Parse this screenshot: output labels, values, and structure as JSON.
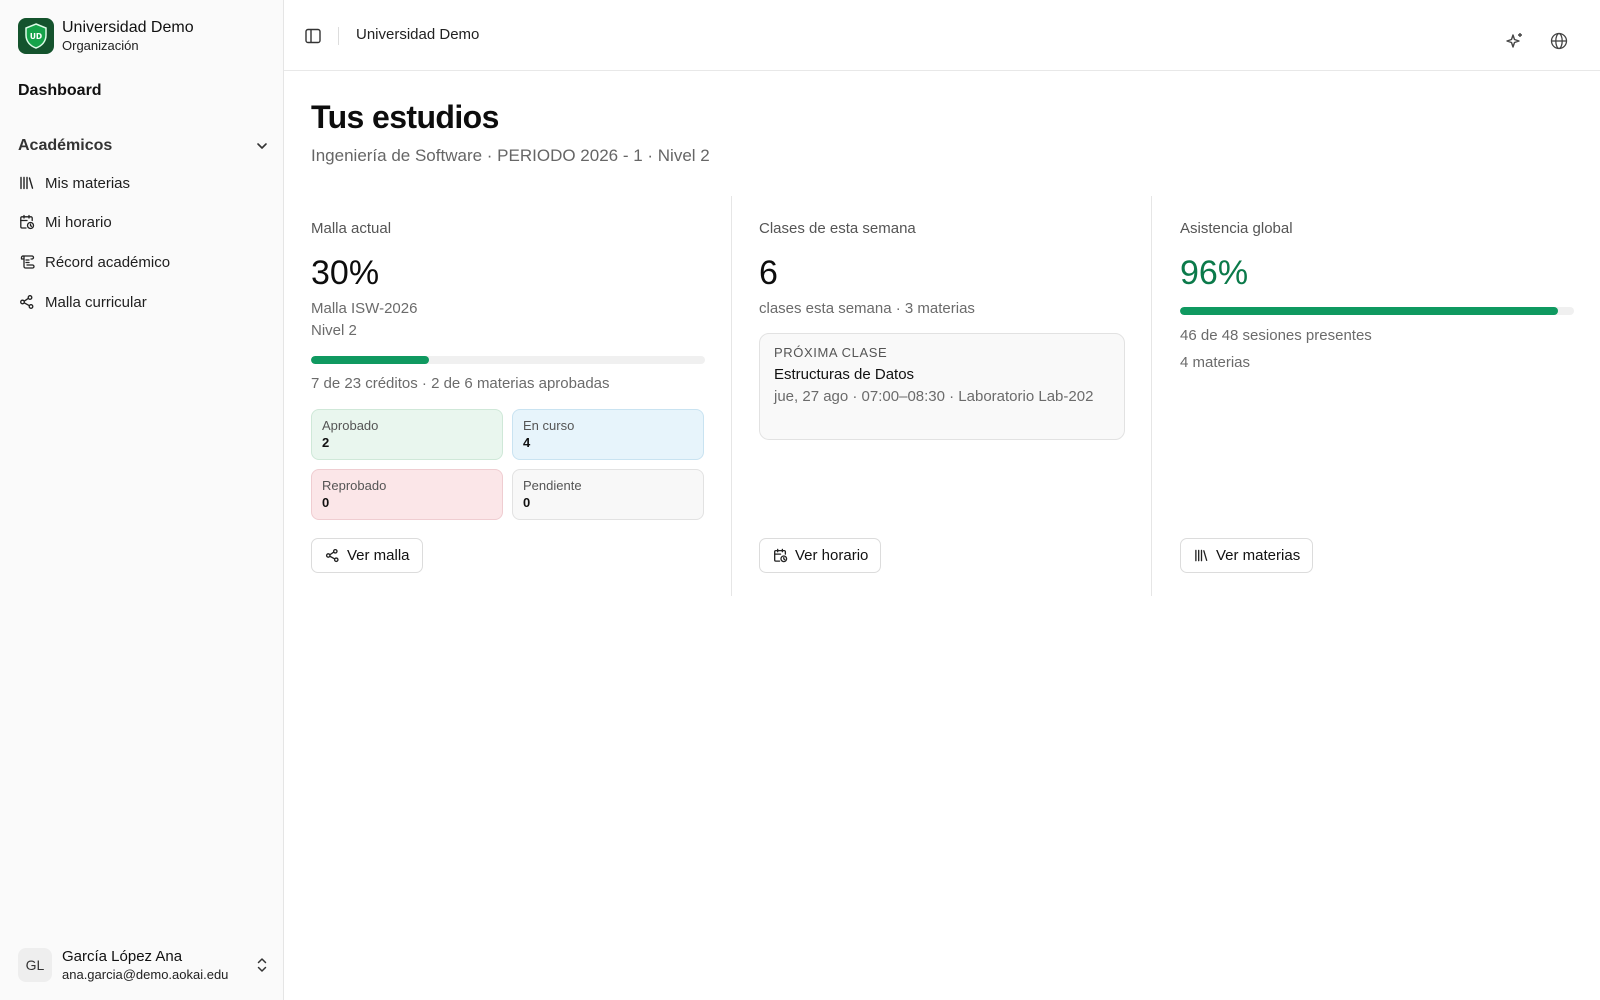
{
  "org": {
    "logo_text": "UD",
    "name": "Universidad Demo",
    "subtitle": "Organización",
    "logo_color": "#14532d"
  },
  "sidebar": {
    "dashboard_label": "Dashboard",
    "section_title": "Académicos",
    "items": [
      {
        "label": "Mis materias",
        "icon": "library-icon"
      },
      {
        "label": "Mi horario",
        "icon": "calendar-clock-icon"
      },
      {
        "label": "Récord académico",
        "icon": "scroll-icon"
      },
      {
        "label": "Malla curricular",
        "icon": "network-icon"
      }
    ]
  },
  "user": {
    "initials": "GL",
    "name": "García López Ana",
    "email": "ana.garcia@demo.aokai.edu"
  },
  "header": {
    "title": "Universidad Demo"
  },
  "page": {
    "title": "Tus estudios",
    "subtitle": "Ingeniería de Software · PERIODO 2026 - 1 · Nivel 2"
  },
  "malla": {
    "label": "Malla actual",
    "percent_text": "30%",
    "progress": 0.3,
    "plan": "Malla ISW-2026",
    "level": "Nivel 2",
    "summary": "7 de 23 créditos · 2 de 6 materias aprobadas",
    "statuses": [
      {
        "label": "Aprobado",
        "value": "2"
      },
      {
        "label": "En curso",
        "value": "4"
      },
      {
        "label": "Reprobado",
        "value": "0"
      },
      {
        "label": "Pendiente",
        "value": "0"
      }
    ],
    "button_label": "Ver malla"
  },
  "semana": {
    "label": "Clases de esta semana",
    "count": "6",
    "summary": "clases esta semana · 3 materias",
    "next_kicker": "PRÓXIMA CLASE",
    "next_name": "Estructuras de Datos",
    "next_detail": "jue, 27 ago · 07:00–08:30 · Laboratorio Lab-202",
    "button_label": "Ver horario"
  },
  "asistencia": {
    "label": "Asistencia global",
    "percent_text": "96%",
    "progress": 0.96,
    "sessions": "46 de 48 sesiones presentes",
    "subjects": "4 materias",
    "button_label": "Ver materias",
    "accent_color": "#0b7a4a"
  },
  "colors": {
    "progress_fill": "#0f9960"
  }
}
